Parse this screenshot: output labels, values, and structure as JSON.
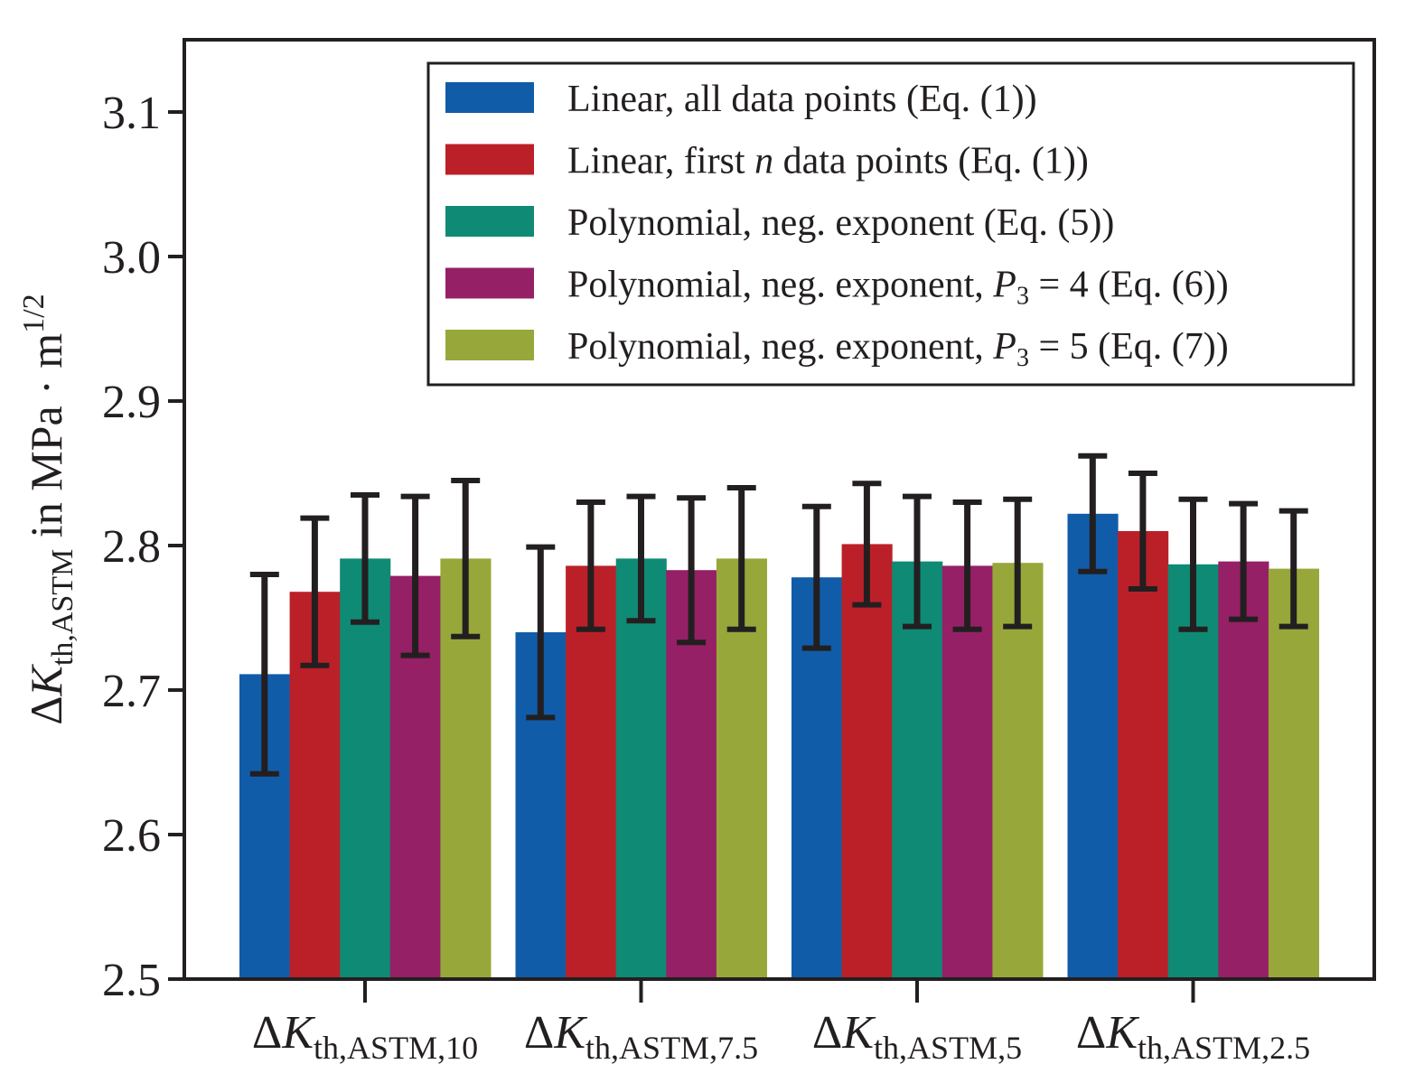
{
  "chart_data": {
    "type": "bar",
    "title": "",
    "ylabel": {
      "delta": "Δ",
      "var": "K",
      "sub": "th,ASTM",
      "unit": " in MPa · m",
      "exp": "1/2"
    },
    "xlabel": "",
    "ylim": [
      2.5,
      3.15
    ],
    "yticks": [
      "2.5",
      "2.6",
      "2.7",
      "2.8",
      "2.9",
      "3.0",
      "3.1"
    ],
    "categories": [
      {
        "delta": "Δ",
        "var": "K",
        "sub": "th,ASTM,10"
      },
      {
        "delta": "Δ",
        "var": "K",
        "sub": "th,ASTM,7.5"
      },
      {
        "delta": "Δ",
        "var": "K",
        "sub": "th,ASTM,5"
      },
      {
        "delta": "Δ",
        "var": "K",
        "sub": "th,ASTM,2.5"
      }
    ],
    "series": [
      {
        "name": "Linear, all data points (Eq. (1))",
        "legend_parts": {
          "pre": "Linear, all data points (Eq. (1))",
          "ital": "",
          "sub": "",
          "post": ""
        },
        "color": "#115ca8",
        "values": [
          2.711,
          2.74,
          2.778,
          2.822
        ],
        "errors": [
          0.069,
          0.059,
          0.049,
          0.04
        ]
      },
      {
        "name": "Linear, first n data points (Eq. (1))",
        "legend_parts": {
          "pre": "Linear, first ",
          "ital": "n",
          "sub": "",
          "post": " data points (Eq. (1))"
        },
        "color": "#bb2028",
        "values": [
          2.768,
          2.786,
          2.801,
          2.81
        ],
        "errors": [
          0.051,
          0.044,
          0.042,
          0.04
        ]
      },
      {
        "name": "Polynomial, neg. exponent (Eq. (5))",
        "legend_parts": {
          "pre": "Polynomial, neg. exponent (Eq. (5))",
          "ital": "",
          "sub": "",
          "post": ""
        },
        "color": "#0f8a74",
        "values": [
          2.791,
          2.791,
          2.789,
          2.787
        ],
        "errors": [
          0.044,
          0.043,
          0.045,
          0.045
        ]
      },
      {
        "name": "Polynomial, neg. exponent, P3 = 4 (Eq. (6))",
        "legend_parts": {
          "pre": "Polynomial, neg. exponent, ",
          "ital": "P",
          "sub": "3",
          "post": " = 4 (Eq. (6))"
        },
        "color": "#952066",
        "values": [
          2.779,
          2.783,
          2.786,
          2.789
        ],
        "errors": [
          0.055,
          0.05,
          0.044,
          0.04
        ]
      },
      {
        "name": "Polynomial, neg. exponent, P3 = 5 (Eq. (7))",
        "legend_parts": {
          "pre": "Polynomial, neg. exponent, ",
          "ital": "P",
          "sub": "3",
          "post": " = 5 (Eq. (7))"
        },
        "color": "#98a73a",
        "values": [
          2.791,
          2.791,
          2.788,
          2.784
        ],
        "errors": [
          0.054,
          0.049,
          0.044,
          0.04
        ]
      }
    ],
    "error_bar_color": "#231f20",
    "grid": false,
    "legend_position": "top-right"
  }
}
